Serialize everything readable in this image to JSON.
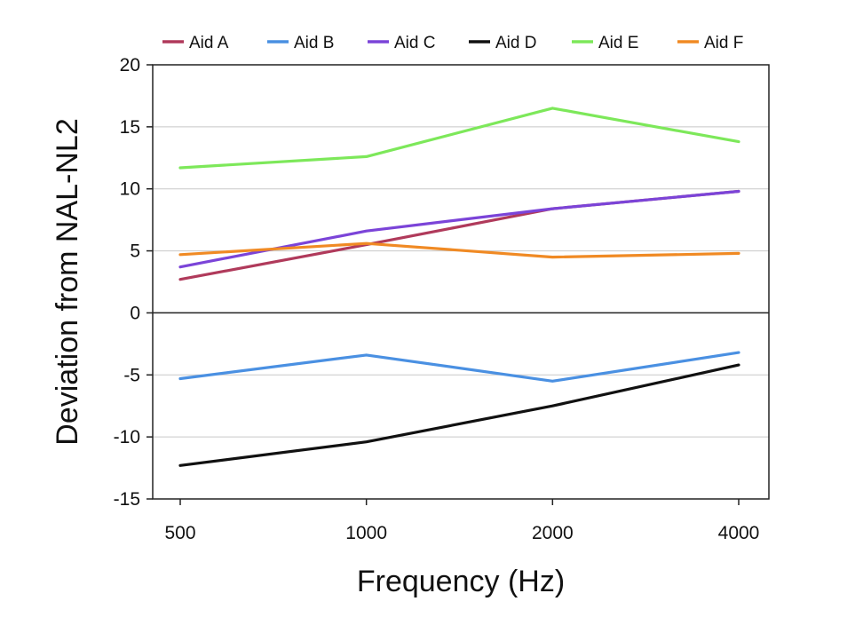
{
  "chart_data": {
    "type": "line",
    "xlabel": "Frequency (Hz)",
    "ylabel": "Deviation from NAL-NL2",
    "x": [
      500,
      1000,
      2000,
      4000
    ],
    "x_tick_labels": [
      "500",
      "1000",
      "2000",
      "4000"
    ],
    "x_scale": "log",
    "ylim": [
      -15,
      20
    ],
    "y_ticks": [
      20,
      15,
      10,
      5,
      0,
      -5,
      -10,
      -15
    ],
    "y_tick_labels": [
      "20",
      "15",
      "10",
      "5",
      "0",
      "-5",
      "-10",
      "-15"
    ],
    "grid": true,
    "legend_position": "top",
    "series": [
      {
        "name": "Aid A",
        "color": "#b03a5b",
        "values": [
          2.7,
          5.5,
          8.4,
          9.8
        ]
      },
      {
        "name": "Aid B",
        "color": "#4a90e2",
        "values": [
          -5.3,
          -3.4,
          -5.5,
          -3.2
        ]
      },
      {
        "name": "Aid C",
        "color": "#7b44d8",
        "values": [
          3.7,
          6.6,
          8.4,
          9.8
        ]
      },
      {
        "name": "Aid D",
        "color": "#111111",
        "values": [
          -12.3,
          -10.4,
          -7.5,
          -4.2
        ]
      },
      {
        "name": "Aid E",
        "color": "#7de85a",
        "values": [
          11.7,
          12.6,
          16.5,
          13.8
        ]
      },
      {
        "name": "Aid F",
        "color": "#f08a24",
        "values": [
          4.7,
          5.6,
          4.5,
          4.8
        ]
      }
    ]
  }
}
